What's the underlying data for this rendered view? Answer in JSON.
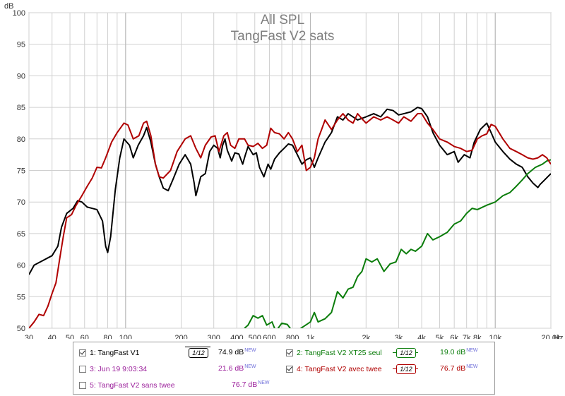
{
  "chart_data": {
    "type": "line",
    "title": "All SPL",
    "subtitle": "TangFast V2 sats",
    "ylabel": "dB",
    "xlabel": "Hz",
    "x_scale": "log",
    "xlim": [
      30,
      20000
    ],
    "ylim": [
      50,
      100
    ],
    "grid": true,
    "y_ticks": [
      50,
      55,
      60,
      65,
      70,
      75,
      80,
      85,
      90,
      95,
      100
    ],
    "x_ticks": [
      {
        "v": 30,
        "label": "30"
      },
      {
        "v": 40,
        "label": "40"
      },
      {
        "v": 50,
        "label": "50"
      },
      {
        "v": 60,
        "label": "60"
      },
      {
        "v": 80,
        "label": "80"
      },
      {
        "v": 100,
        "label": "100"
      },
      {
        "v": 200,
        "label": "200"
      },
      {
        "v": 300,
        "label": "300"
      },
      {
        "v": 400,
        "label": "400"
      },
      {
        "v": 500,
        "label": "500"
      },
      {
        "v": 600,
        "label": "600"
      },
      {
        "v": 800,
        "label": "800"
      },
      {
        "v": 1000,
        "label": "1k"
      },
      {
        "v": 2000,
        "label": "2k"
      },
      {
        "v": 3000,
        "label": "3k"
      },
      {
        "v": 4000,
        "label": "4k"
      },
      {
        "v": 5000,
        "label": "5k"
      },
      {
        "v": 6000,
        "label": "6k"
      },
      {
        "v": 7000,
        "label": "7k"
      },
      {
        "v": 8000,
        "label": "8k"
      },
      {
        "v": 10000,
        "label": "10k"
      },
      {
        "v": 20000,
        "label": "20.0k"
      }
    ],
    "series": [
      {
        "name": "1: TangFast V1",
        "color": "#000000",
        "points": [
          [
            30,
            58.5
          ],
          [
            32,
            60
          ],
          [
            35,
            60.6
          ],
          [
            40,
            61.5
          ],
          [
            43,
            63
          ],
          [
            45,
            66
          ],
          [
            48,
            68.2
          ],
          [
            52,
            69
          ],
          [
            55,
            70.2
          ],
          [
            58,
            70
          ],
          [
            62,
            69.2
          ],
          [
            70,
            68.8
          ],
          [
            75,
            67
          ],
          [
            78,
            63
          ],
          [
            80,
            62
          ],
          [
            83,
            64.5
          ],
          [
            88,
            72
          ],
          [
            93,
            77
          ],
          [
            98,
            80
          ],
          [
            105,
            79
          ],
          [
            110,
            77
          ],
          [
            117,
            79
          ],
          [
            125,
            80.5
          ],
          [
            130,
            81.8
          ],
          [
            137,
            79.5
          ],
          [
            145,
            76
          ],
          [
            152,
            74
          ],
          [
            160,
            72.2
          ],
          [
            170,
            71.8
          ],
          [
            180,
            73.5
          ],
          [
            195,
            76
          ],
          [
            210,
            77.5
          ],
          [
            225,
            76
          ],
          [
            235,
            73
          ],
          [
            240,
            71
          ],
          [
            245,
            72
          ],
          [
            255,
            74
          ],
          [
            270,
            74.5
          ],
          [
            285,
            78
          ],
          [
            300,
            79
          ],
          [
            315,
            78.5
          ],
          [
            325,
            77
          ],
          [
            335,
            79
          ],
          [
            345,
            80
          ],
          [
            355,
            78.2
          ],
          [
            375,
            76.5
          ],
          [
            390,
            77.8
          ],
          [
            410,
            77.6
          ],
          [
            430,
            76
          ],
          [
            445,
            77.5
          ],
          [
            460,
            78.8
          ],
          [
            490,
            77.5
          ],
          [
            510,
            77.8
          ],
          [
            530,
            75.5
          ],
          [
            560,
            74
          ],
          [
            590,
            76
          ],
          [
            610,
            75.2
          ],
          [
            640,
            76.8
          ],
          [
            680,
            77.8
          ],
          [
            720,
            78.5
          ],
          [
            760,
            79.2
          ],
          [
            800,
            79
          ],
          [
            850,
            77.5
          ],
          [
            900,
            76
          ],
          [
            950,
            76.7
          ],
          [
            1000,
            77
          ],
          [
            1050,
            75.5
          ],
          [
            1100,
            77
          ],
          [
            1200,
            79.5
          ],
          [
            1300,
            81
          ],
          [
            1400,
            83.5
          ],
          [
            1500,
            83
          ],
          [
            1600,
            84
          ],
          [
            1800,
            83
          ],
          [
            2000,
            83.5
          ],
          [
            2200,
            84
          ],
          [
            2400,
            83.5
          ],
          [
            2600,
            84.7
          ],
          [
            2800,
            84.5
          ],
          [
            3000,
            83.8
          ],
          [
            3200,
            84
          ],
          [
            3500,
            84.3
          ],
          [
            3800,
            85
          ],
          [
            4000,
            84.8
          ],
          [
            4300,
            83.5
          ],
          [
            4600,
            81
          ],
          [
            5000,
            79
          ],
          [
            5500,
            77.5
          ],
          [
            6000,
            78
          ],
          [
            6300,
            76.3
          ],
          [
            6800,
            77.5
          ],
          [
            7300,
            77
          ],
          [
            7700,
            79.5
          ],
          [
            8300,
            81.5
          ],
          [
            9000,
            82.5
          ],
          [
            9500,
            81
          ],
          [
            10000,
            79.5
          ],
          [
            11000,
            78
          ],
          [
            12000,
            76.8
          ],
          [
            13000,
            76
          ],
          [
            14000,
            75.5
          ],
          [
            15000,
            74
          ],
          [
            16000,
            73
          ],
          [
            17000,
            72.3
          ],
          [
            17500,
            72.8
          ],
          [
            18500,
            73.5
          ],
          [
            20000,
            74.5
          ]
        ]
      },
      {
        "name": "2: TangFast V2 XT25 seul",
        "color": "#0b7d0b",
        "points": [
          [
            440,
            50
          ],
          [
            460,
            50.5
          ],
          [
            490,
            52
          ],
          [
            520,
            51.6
          ],
          [
            550,
            52
          ],
          [
            580,
            50.5
          ],
          [
            620,
            51
          ],
          [
            650,
            49.5
          ],
          [
            700,
            50.8
          ],
          [
            750,
            50.6
          ],
          [
            800,
            49.5
          ],
          [
            850,
            49.6
          ],
          [
            900,
            50.1
          ],
          [
            1000,
            51
          ],
          [
            1050,
            52.5
          ],
          [
            1100,
            51
          ],
          [
            1200,
            51.5
          ],
          [
            1300,
            52.5
          ],
          [
            1400,
            55.8
          ],
          [
            1500,
            54.8
          ],
          [
            1600,
            56.2
          ],
          [
            1700,
            56.5
          ],
          [
            1800,
            58.2
          ],
          [
            1900,
            59
          ],
          [
            2000,
            61
          ],
          [
            2150,
            60.5
          ],
          [
            2300,
            61
          ],
          [
            2500,
            59
          ],
          [
            2700,
            60.2
          ],
          [
            2900,
            60.5
          ],
          [
            3100,
            62.5
          ],
          [
            3300,
            61.8
          ],
          [
            3500,
            62.5
          ],
          [
            3700,
            62.2
          ],
          [
            4000,
            63
          ],
          [
            4300,
            65
          ],
          [
            4600,
            64
          ],
          [
            5000,
            64.5
          ],
          [
            5500,
            65.2
          ],
          [
            6000,
            66.5
          ],
          [
            6500,
            67
          ],
          [
            7000,
            68.2
          ],
          [
            7500,
            69
          ],
          [
            8000,
            68.8
          ],
          [
            9000,
            69.5
          ],
          [
            10000,
            70
          ],
          [
            11000,
            71
          ],
          [
            12000,
            71.5
          ],
          [
            13000,
            72.5
          ],
          [
            14000,
            73.5
          ],
          [
            15000,
            74.5
          ],
          [
            16500,
            75.5
          ],
          [
            18000,
            76
          ],
          [
            19000,
            76.5
          ],
          [
            20000,
            76.7
          ]
        ]
      },
      {
        "name": "4: TangFast V2 avec twee",
        "color": "#b00000",
        "points": [
          [
            30,
            50
          ],
          [
            32,
            51
          ],
          [
            34,
            52.2
          ],
          [
            36,
            52
          ],
          [
            38,
            53.5
          ],
          [
            40,
            55.5
          ],
          [
            42,
            57.2
          ],
          [
            44,
            61
          ],
          [
            46,
            64.5
          ],
          [
            48,
            67.5
          ],
          [
            51,
            68
          ],
          [
            54,
            69.5
          ],
          [
            58,
            71
          ],
          [
            62,
            72.5
          ],
          [
            66,
            73.8
          ],
          [
            70,
            75.5
          ],
          [
            74,
            75.4
          ],
          [
            78,
            77
          ],
          [
            84,
            79.5
          ],
          [
            90,
            81
          ],
          [
            98,
            82.5
          ],
          [
            103,
            82.2
          ],
          [
            110,
            80
          ],
          [
            118,
            80.5
          ],
          [
            125,
            82.5
          ],
          [
            130,
            82.8
          ],
          [
            137,
            80.5
          ],
          [
            145,
            76
          ],
          [
            152,
            74
          ],
          [
            160,
            73.8
          ],
          [
            175,
            75
          ],
          [
            190,
            78
          ],
          [
            210,
            80
          ],
          [
            225,
            80.5
          ],
          [
            240,
            78.5
          ],
          [
            255,
            77
          ],
          [
            270,
            79
          ],
          [
            290,
            80.3
          ],
          [
            305,
            80.5
          ],
          [
            320,
            78
          ],
          [
            340,
            80.5
          ],
          [
            355,
            81
          ],
          [
            370,
            79
          ],
          [
            390,
            78.5
          ],
          [
            410,
            80
          ],
          [
            440,
            80
          ],
          [
            460,
            79
          ],
          [
            490,
            78.8
          ],
          [
            520,
            79.3
          ],
          [
            550,
            78.5
          ],
          [
            580,
            79
          ],
          [
            610,
            81.7
          ],
          [
            640,
            81
          ],
          [
            680,
            80.8
          ],
          [
            720,
            80
          ],
          [
            760,
            81
          ],
          [
            800,
            80
          ],
          [
            850,
            78
          ],
          [
            900,
            79
          ],
          [
            950,
            75
          ],
          [
            1000,
            75.5
          ],
          [
            1050,
            77
          ],
          [
            1100,
            80
          ],
          [
            1150,
            81.5
          ],
          [
            1200,
            83
          ],
          [
            1300,
            81.5
          ],
          [
            1400,
            83
          ],
          [
            1500,
            84
          ],
          [
            1600,
            83
          ],
          [
            1700,
            82.5
          ],
          [
            1800,
            84
          ],
          [
            1900,
            83.2
          ],
          [
            2000,
            82.5
          ],
          [
            2200,
            83.5
          ],
          [
            2400,
            83
          ],
          [
            2600,
            83.5
          ],
          [
            2800,
            83
          ],
          [
            3000,
            82.5
          ],
          [
            3200,
            83.5
          ],
          [
            3500,
            82.8
          ],
          [
            3800,
            84
          ],
          [
            4000,
            84
          ],
          [
            4300,
            82.5
          ],
          [
            4600,
            81.5
          ],
          [
            5000,
            80
          ],
          [
            5500,
            79.5
          ],
          [
            6000,
            78.8
          ],
          [
            6500,
            78.5
          ],
          [
            7000,
            78
          ],
          [
            7500,
            78.2
          ],
          [
            8000,
            80
          ],
          [
            8500,
            80.5
          ],
          [
            9000,
            80.8
          ],
          [
            9500,
            82.3
          ],
          [
            10000,
            82
          ],
          [
            11000,
            80
          ],
          [
            12000,
            78.5
          ],
          [
            13000,
            78
          ],
          [
            14000,
            77.5
          ],
          [
            15000,
            77
          ],
          [
            16000,
            76.8
          ],
          [
            17000,
            77
          ],
          [
            18000,
            77.5
          ],
          [
            19000,
            77
          ],
          [
            20000,
            76
          ]
        ]
      }
    ]
  },
  "legend": {
    "items": [
      {
        "label": "1: TangFast V1",
        "level": "74.9 dB",
        "badge": "NEW",
        "smoothing": "1/12"
      },
      {
        "label": "2: TangFast V2 XT25 seul",
        "level": "19.0 dB",
        "badge": "NEW",
        "smoothing": "1/12"
      },
      {
        "label": "3: Jun 19 9:03:34",
        "level": "21.6 dB",
        "badge": "NEW"
      },
      {
        "label": "4: TangFast V2 avec twee",
        "level": "76.7 dB",
        "badge": "NEW",
        "smoothing": "1/12"
      },
      {
        "label": "5: TangFast V2 sans twee",
        "level": "76.7 dB",
        "badge": "NEW"
      }
    ]
  },
  "colors": {
    "series1": "#000000",
    "series2": "#0b7d0b",
    "series3": "#9b1f9b",
    "series4": "#b00000",
    "series5": "#9b1f9b",
    "title": "#7f7f7f",
    "grid": "#d0d0d0"
  }
}
